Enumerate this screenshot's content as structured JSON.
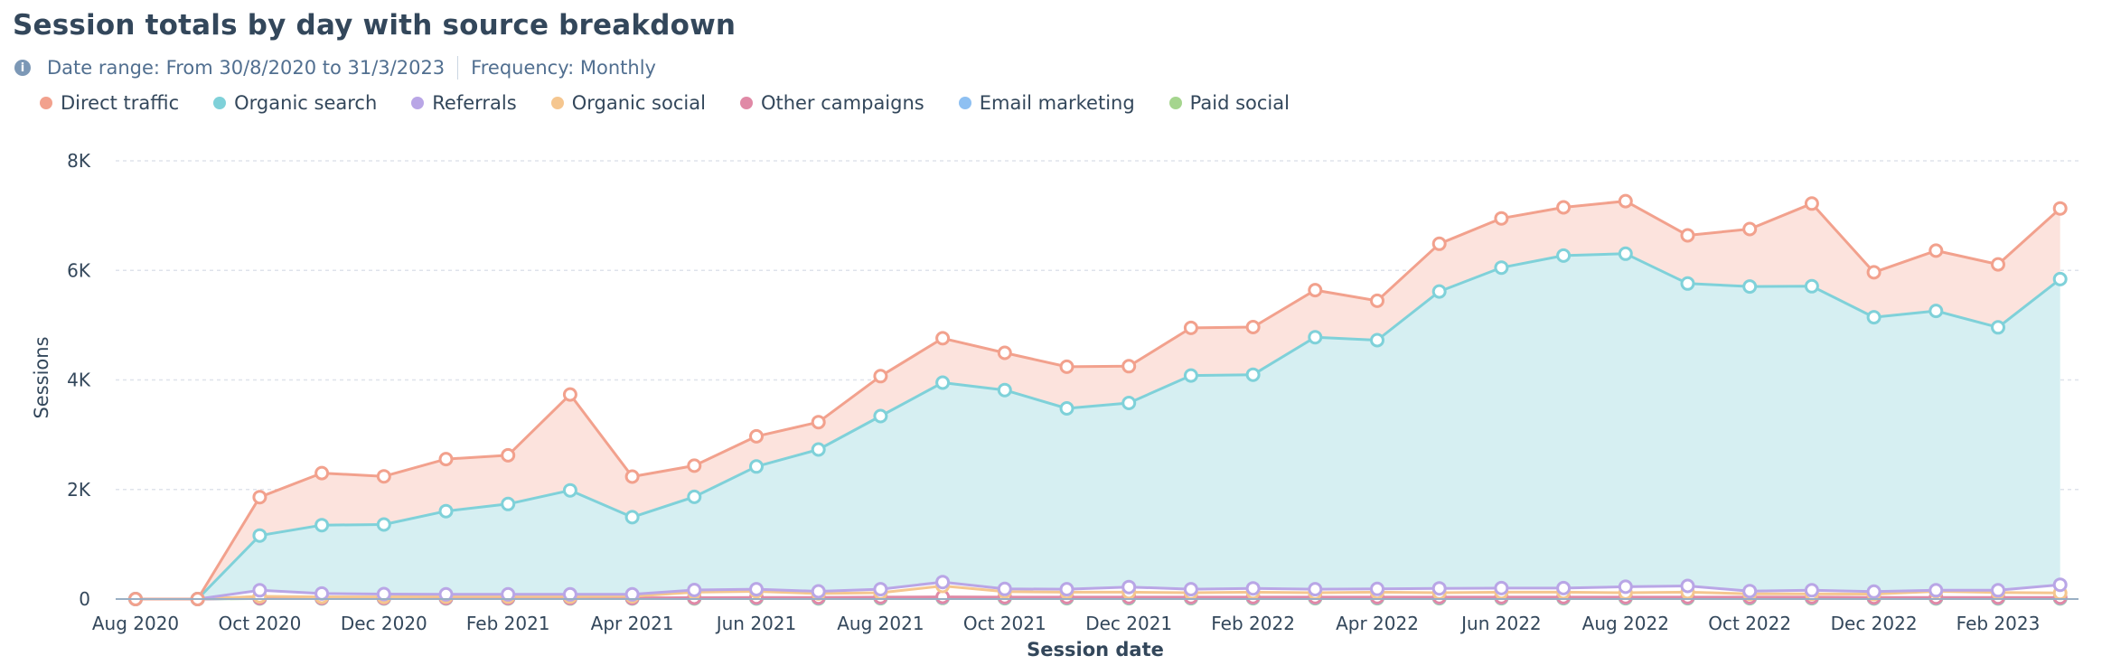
{
  "header": {
    "title": "Session totals by day with source breakdown",
    "date_range": "Date range: From 30/8/2020 to 31/3/2023",
    "frequency": "Frequency: Monthly"
  },
  "colors": {
    "direct": "#f2a18d",
    "direct_fill": "#fce3dd",
    "organic": "#7fd1d9",
    "organic_fill": "#d6eff2",
    "referrals": "#b9a6e6",
    "organic_social": "#f5c68f",
    "other_campaigns": "#e089a6",
    "email": "#8ec0f2",
    "paid_social": "#a5d58e",
    "grid": "#dfe3eb",
    "axis": "#99afc4",
    "icon_bg": "#7c98b6"
  },
  "chart_data": {
    "type": "area",
    "stacked": true,
    "title": "Session totals by day with source breakdown",
    "xlabel": "Session date",
    "ylabel": "Sessions",
    "ylim": [
      0,
      8000
    ],
    "yticks": [
      0,
      2000,
      4000,
      6000,
      8000
    ],
    "ytick_labels": [
      "0",
      "2K",
      "4K",
      "6K",
      "8K"
    ],
    "x": [
      "2020-08",
      "2020-09",
      "2020-10",
      "2020-11",
      "2020-12",
      "2021-01",
      "2021-02",
      "2021-03",
      "2021-04",
      "2021-05",
      "2021-06",
      "2021-07",
      "2021-08",
      "2021-09",
      "2021-10",
      "2021-11",
      "2021-12",
      "2022-01",
      "2022-02",
      "2022-03",
      "2022-04",
      "2022-05",
      "2022-06",
      "2022-07",
      "2022-08",
      "2022-09",
      "2022-10",
      "2022-11",
      "2022-12",
      "2023-01",
      "2023-02",
      "2023-03"
    ],
    "xtick_labels": [
      "Aug 2020",
      "",
      "Oct 2020",
      "",
      "Dec 2020",
      "",
      "Feb 2021",
      "",
      "Apr 2021",
      "",
      "Jun 2021",
      "",
      "Aug 2021",
      "",
      "Oct 2021",
      "",
      "Dec 2021",
      "",
      "Feb 2022",
      "",
      "Apr 2022",
      "",
      "Jun 2022",
      "",
      "Aug 2022",
      "",
      "Oct 2022",
      "",
      "Dec 2022",
      "",
      "Feb 2023",
      ""
    ],
    "legend_position": "top-left",
    "grid": true,
    "series": [
      {
        "name": "Paid social",
        "values": [
          0,
          0,
          10,
          10,
          10,
          10,
          10,
          10,
          10,
          10,
          10,
          10,
          15,
          20,
          15,
          15,
          15,
          15,
          15,
          15,
          15,
          15,
          15,
          15,
          15,
          15,
          15,
          15,
          10,
          10,
          10,
          10
        ]
      },
      {
        "name": "Email marketing",
        "values": [
          0,
          0,
          5,
          5,
          5,
          5,
          5,
          5,
          5,
          10,
          10,
          10,
          10,
          10,
          10,
          10,
          10,
          10,
          10,
          10,
          10,
          10,
          10,
          10,
          10,
          10,
          10,
          10,
          10,
          10,
          10,
          10
        ]
      },
      {
        "name": "Other campaigns",
        "values": [
          0,
          0,
          5,
          5,
          5,
          5,
          5,
          5,
          5,
          5,
          10,
          10,
          10,
          10,
          10,
          10,
          10,
          10,
          10,
          10,
          10,
          10,
          10,
          10,
          10,
          10,
          10,
          10,
          10,
          10,
          10,
          10
        ]
      },
      {
        "name": "Organic social",
        "values": [
          0,
          0,
          30,
          20,
          20,
          25,
          25,
          25,
          30,
          100,
          110,
          70,
          80,
          200,
          100,
          90,
          90,
          80,
          90,
          80,
          90,
          80,
          90,
          90,
          80,
          90,
          60,
          60,
          60,
          110,
          90,
          80
        ]
      },
      {
        "name": "Referrals",
        "values": [
          0,
          0,
          110,
          60,
          50,
          40,
          40,
          40,
          35,
          40,
          40,
          40,
          65,
          70,
          50,
          55,
          95,
          65,
          70,
          65,
          60,
          80,
          75,
          75,
          110,
          115,
          50,
          65,
          45,
          20,
          40,
          150
        ]
      },
      {
        "name": "Organic search",
        "values": [
          0,
          0,
          1000,
          1250,
          1270,
          1520,
          1650,
          1900,
          1410,
          1700,
          2240,
          2590,
          3160,
          3640,
          3630,
          3300,
          3360,
          3900,
          3900,
          4600,
          4540,
          5420,
          5850,
          6070,
          6080,
          5520,
          5560,
          5550,
          5010,
          5100,
          4800,
          5580
        ]
      },
      {
        "name": "Direct traffic",
        "values": [
          0,
          0,
          700,
          950,
          880,
          950,
          890,
          1750,
          740,
          570,
          550,
          500,
          730,
          810,
          680,
          760,
          670,
          870,
          870,
          860,
          720,
          870,
          900,
          880,
          960,
          880,
          1050,
          1510,
          820,
          1100,
          1150,
          1290
        ]
      }
    ]
  }
}
